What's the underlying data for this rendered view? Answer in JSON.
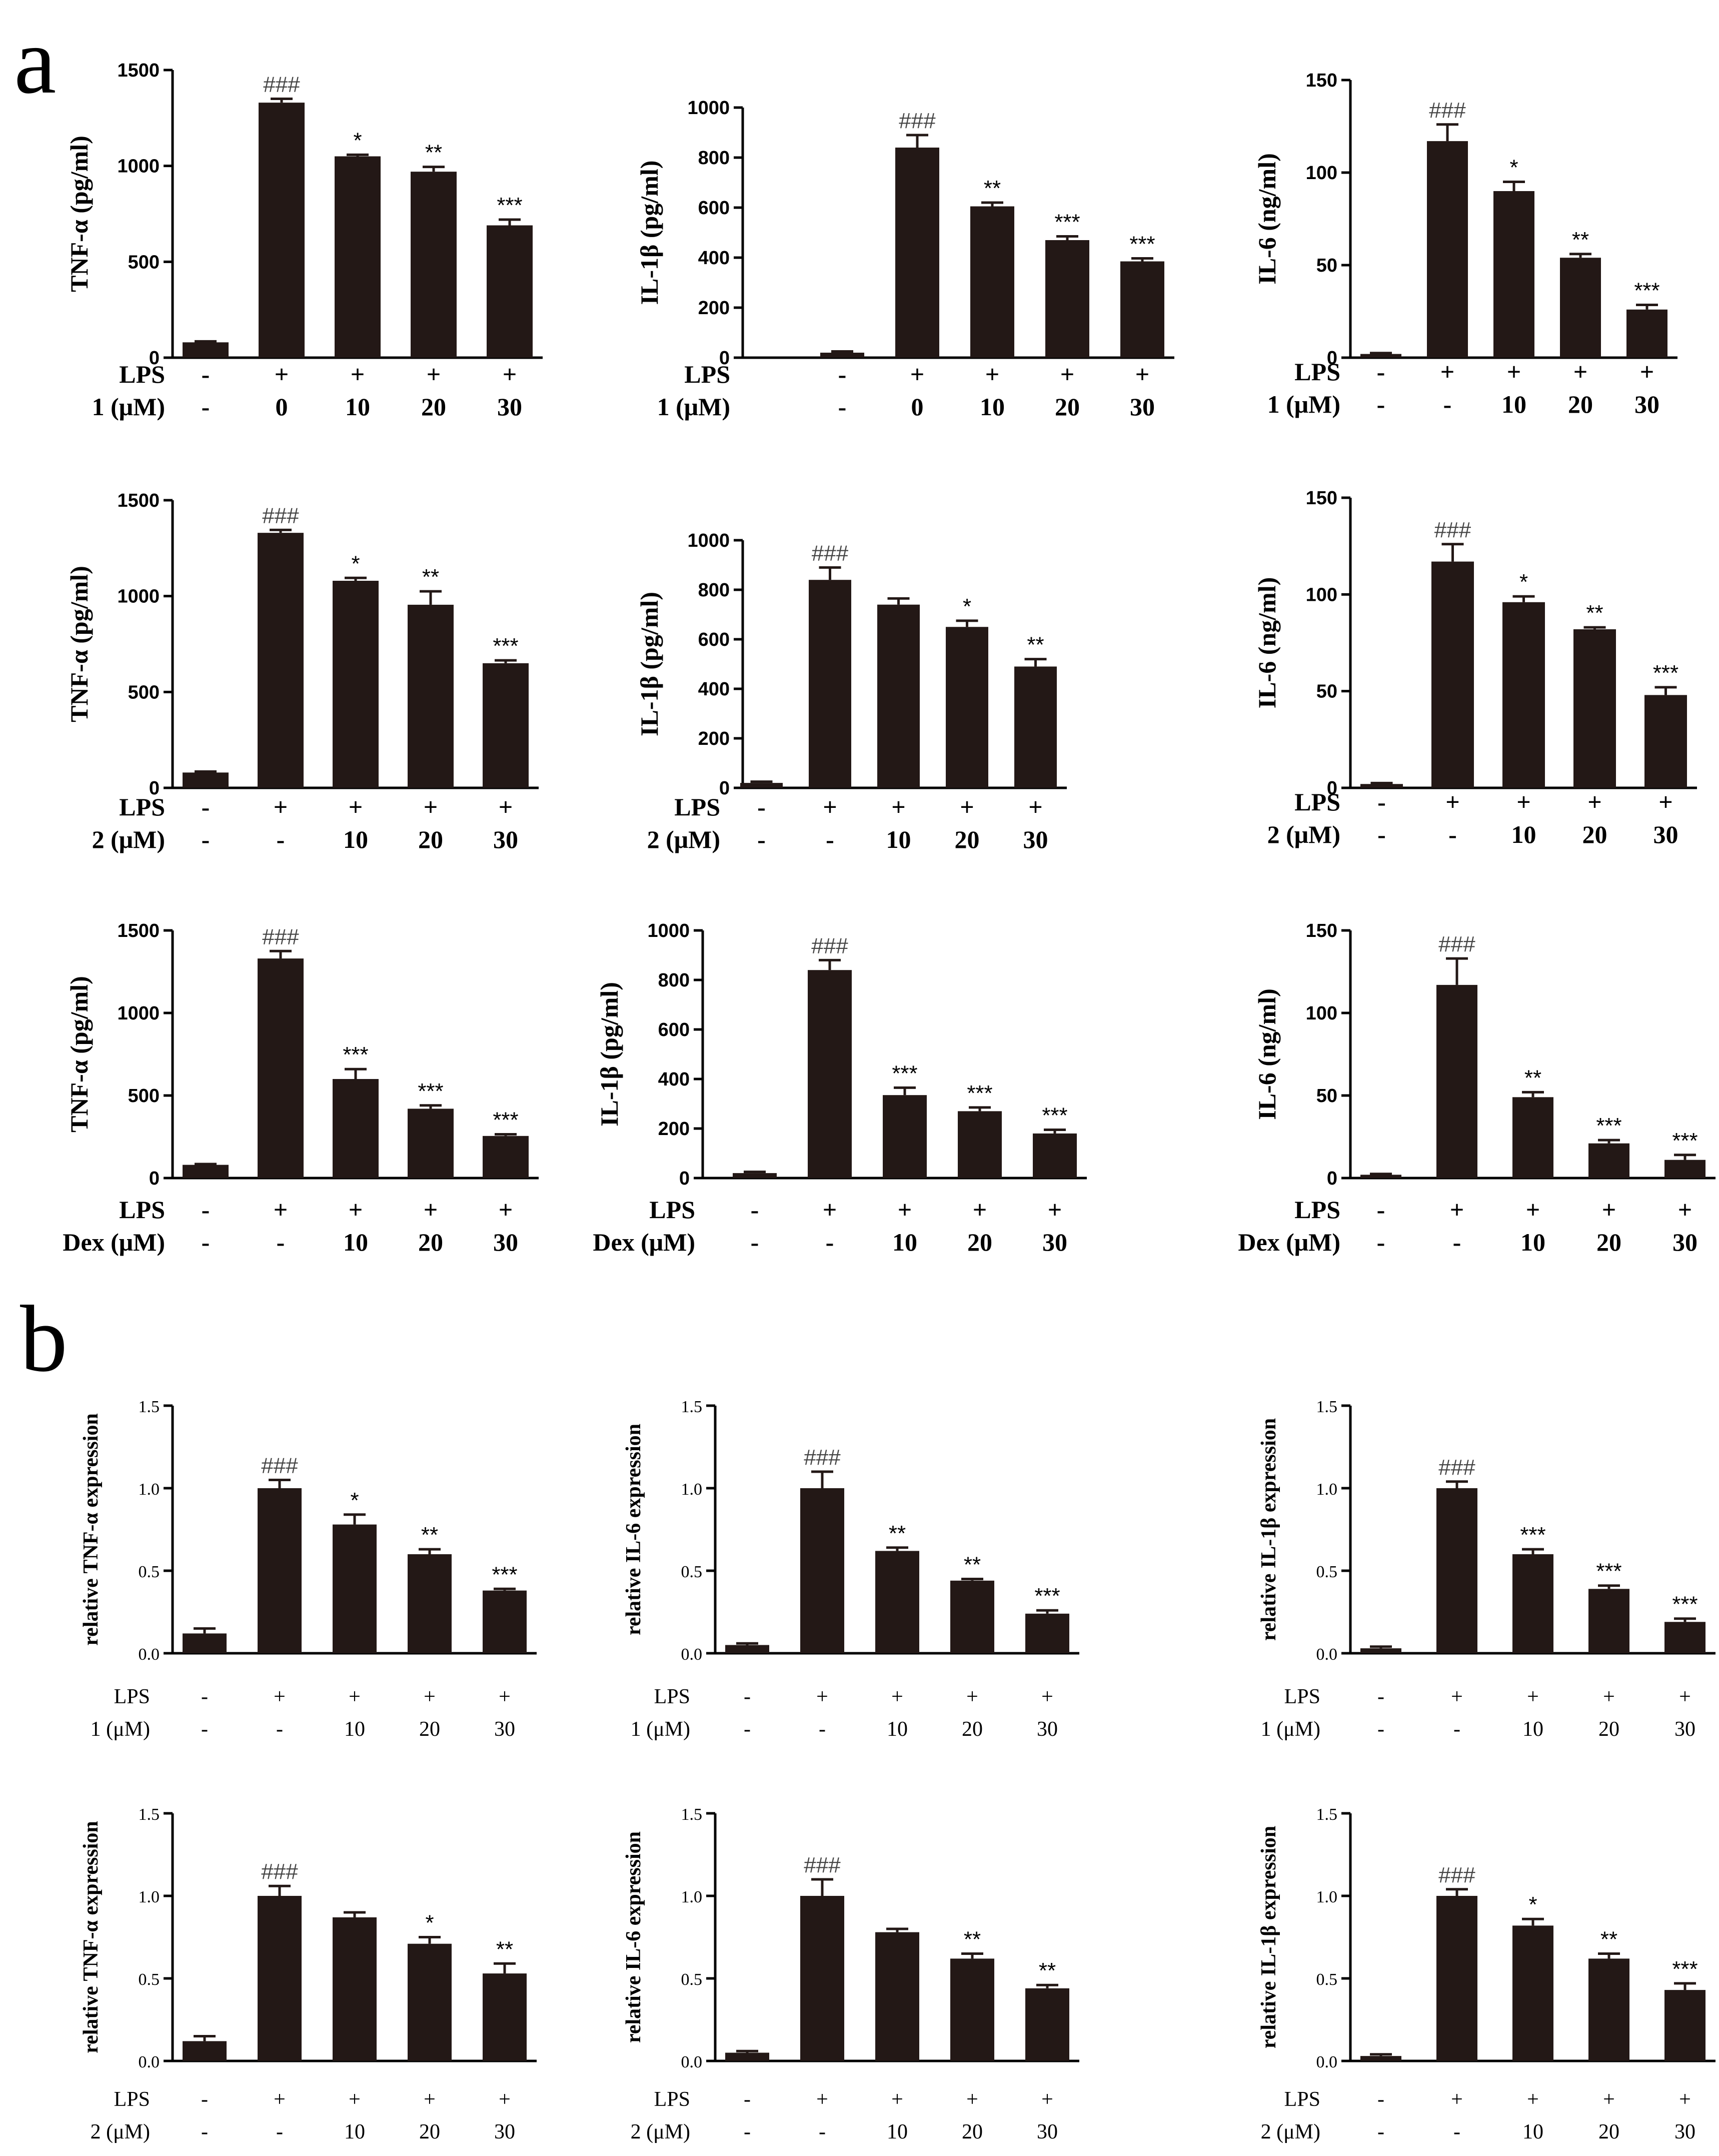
{
  "panel_labels": [
    "a",
    "b"
  ],
  "colors": {
    "bar": "#231816",
    "axis": "#000000"
  },
  "chart_data": [
    {
      "id": "a1",
      "panel": "a",
      "type": "bar",
      "ylabel": "TNF-α  (pg/ml)",
      "ylim": [
        0,
        1500
      ],
      "yticks": [
        "0",
        "500",
        "1000",
        "1500"
      ],
      "rows": [
        {
          "label": "LPS",
          "values": [
            "-",
            "+",
            "+",
            "+",
            "+"
          ]
        },
        {
          "label": "1 (μM)",
          "values": [
            "-",
            "0",
            "10",
            "20",
            "30"
          ]
        }
      ],
      "values": [
        80,
        1330,
        1050,
        970,
        690
      ],
      "errors": [
        5,
        20,
        8,
        25,
        30
      ],
      "annotations": [
        "",
        "###",
        "*",
        "**",
        "***"
      ]
    },
    {
      "id": "a2",
      "panel": "a",
      "type": "bar",
      "ylabel": "IL-1β  (pg/ml)",
      "ylim": [
        0,
        1000
      ],
      "yticks": [
        "0",
        "200",
        "400",
        "600",
        "800",
        "1000"
      ],
      "rows": [
        {
          "label": "LPS",
          "values": [
            "-",
            "+",
            "+",
            "+",
            "+"
          ]
        },
        {
          "label": "1 (μM)",
          "values": [
            "-",
            "0",
            "10",
            "20",
            "30"
          ]
        }
      ],
      "values": [
        20,
        840,
        605,
        470,
        385
      ],
      "errors": [
        5,
        50,
        15,
        15,
        12
      ],
      "annotations": [
        "",
        "###",
        "**",
        "***",
        "***"
      ]
    },
    {
      "id": "a3",
      "panel": "a",
      "type": "bar",
      "ylabel": "IL-6 (ng/ml)",
      "ylim": [
        0,
        150
      ],
      "yticks": [
        "0",
        "50",
        "100",
        "150"
      ],
      "rows": [
        {
          "label": "LPS",
          "values": [
            "-",
            "+",
            "+",
            "+",
            "+"
          ]
        },
        {
          "label": "1 (μM)",
          "values": [
            "-",
            "-",
            "10",
            "20",
            "30"
          ]
        }
      ],
      "values": [
        2,
        117,
        90,
        54,
        26
      ],
      "errors": [
        0.5,
        9,
        5,
        2,
        2.5
      ],
      "annotations": [
        "",
        "###",
        "*",
        "**",
        "***"
      ]
    },
    {
      "id": "a4",
      "panel": "a",
      "type": "bar",
      "ylabel": "TNF-α  (pg/ml)",
      "ylim": [
        0,
        1500
      ],
      "yticks": [
        "0",
        "500",
        "1000",
        "1500"
      ],
      "rows": [
        {
          "label": "LPS",
          "values": [
            "-",
            "+",
            "+",
            "+",
            "+"
          ]
        },
        {
          "label": "2 (μM)",
          "values": [
            "-",
            "-",
            "10",
            "20",
            "30"
          ]
        }
      ],
      "values": [
        80,
        1330,
        1080,
        955,
        650
      ],
      "errors": [
        5,
        15,
        15,
        70,
        15
      ],
      "annotations": [
        "",
        "###",
        "*",
        "**",
        "***"
      ]
    },
    {
      "id": "a5",
      "panel": "a",
      "type": "bar",
      "ylabel": "IL-1β  (pg/ml)",
      "ylim": [
        0,
        1000
      ],
      "yticks": [
        "0",
        "200",
        "400",
        "600",
        "800",
        "1000"
      ],
      "rows": [
        {
          "label": "LPS",
          "values": [
            "-",
            "+",
            "+",
            "+",
            "+"
          ]
        },
        {
          "label": "2 (μM)",
          "values": [
            "-",
            "-",
            "10",
            "20",
            "30"
          ]
        }
      ],
      "values": [
        20,
        840,
        740,
        650,
        490
      ],
      "errors": [
        5,
        50,
        25,
        25,
        30
      ],
      "annotations": [
        "",
        "###",
        "",
        "*",
        "**"
      ]
    },
    {
      "id": "a6",
      "panel": "a",
      "type": "bar",
      "ylabel": "IL-6 (ng/ml)",
      "ylim": [
        0,
        150
      ],
      "yticks": [
        "0",
        "50",
        "100",
        "150"
      ],
      "rows": [
        {
          "label": "LPS",
          "values": [
            "-",
            "+",
            "+",
            "+",
            "+"
          ]
        },
        {
          "label": "2 (μM)",
          "values": [
            "-",
            "-",
            "10",
            "20",
            "30"
          ]
        }
      ],
      "values": [
        2,
        117,
        96,
        82,
        48
      ],
      "errors": [
        0.5,
        9,
        3,
        1,
        4
      ],
      "annotations": [
        "",
        "###",
        "*",
        "**",
        "***"
      ]
    },
    {
      "id": "a7",
      "panel": "a",
      "type": "bar",
      "ylabel": "TNF-α  (pg/ml)",
      "ylim": [
        0,
        1500
      ],
      "yticks": [
        "0",
        "500",
        "1000",
        "1500"
      ],
      "rows": [
        {
          "label": "LPS",
          "values": [
            "-",
            "+",
            "+",
            "+",
            "+"
          ]
        },
        {
          "label": "Dex (μM)",
          "values": [
            "-",
            "-",
            "10",
            "20",
            "30"
          ]
        }
      ],
      "values": [
        80,
        1330,
        600,
        420,
        255
      ],
      "errors": [
        5,
        45,
        60,
        20,
        10
      ],
      "annotations": [
        "",
        "###",
        "***",
        "***",
        "***"
      ]
    },
    {
      "id": "a8",
      "panel": "a",
      "type": "bar",
      "ylabel": "IL-1β  (pg/ml)",
      "ylim": [
        0,
        1000
      ],
      "yticks": [
        "0",
        "200",
        "400",
        "600",
        "800",
        "1000"
      ],
      "rows": [
        {
          "label": "LPS",
          "values": [
            "-",
            "+",
            "+",
            "+",
            "+"
          ]
        },
        {
          "label": "Dex (μM)",
          "values": [
            "-",
            "-",
            "10",
            "20",
            "30"
          ]
        }
      ],
      "values": [
        20,
        840,
        335,
        270,
        180
      ],
      "errors": [
        5,
        40,
        30,
        15,
        15
      ],
      "annotations": [
        "",
        "###",
        "***",
        "***",
        "***"
      ]
    },
    {
      "id": "a9",
      "panel": "a",
      "type": "bar",
      "ylabel": "IL-6 (ng/ml)",
      "ylim": [
        0,
        150
      ],
      "yticks": [
        "0",
        "50",
        "100",
        "150"
      ],
      "rows": [
        {
          "label": "LPS",
          "values": [
            "-",
            "+",
            "+",
            "+",
            "+"
          ]
        },
        {
          "label": "Dex (μM)",
          "values": [
            "-",
            "-",
            "10",
            "20",
            "30"
          ]
        }
      ],
      "values": [
        2,
        117,
        49,
        21,
        11
      ],
      "errors": [
        0.5,
        16,
        3,
        2,
        3
      ],
      "annotations": [
        "",
        "###",
        "**",
        "***",
        "***"
      ]
    },
    {
      "id": "b1",
      "panel": "b",
      "type": "bar",
      "ylabel": "relative TNF-α  expression",
      "ylim": [
        0,
        1.5
      ],
      "yticks": [
        "0.0",
        "0.5",
        "1.0",
        "1.5"
      ],
      "rows": [
        {
          "label": "LPS",
          "values": [
            "-",
            "+",
            "+",
            "+",
            "+"
          ]
        },
        {
          "label": "1 (μM)",
          "values": [
            "-",
            "-",
            "10",
            "20",
            "30"
          ]
        }
      ],
      "values": [
        0.12,
        1.0,
        0.78,
        0.6,
        0.38
      ],
      "errors": [
        0.03,
        0.05,
        0.06,
        0.03,
        0.01
      ],
      "annotations": [
        "",
        "###",
        "*",
        "**",
        "***"
      ]
    },
    {
      "id": "b2",
      "panel": "b",
      "type": "bar",
      "ylabel": "relative IL-6 expression",
      "ylim": [
        0,
        1.5
      ],
      "yticks": [
        "0.0",
        "0.5",
        "1.0",
        "1.5"
      ],
      "rows": [
        {
          "label": "LPS",
          "values": [
            "-",
            "+",
            "+",
            "+",
            "+"
          ]
        },
        {
          "label": "1 (μM)",
          "values": [
            "-",
            "-",
            "10",
            "20",
            "30"
          ]
        }
      ],
      "values": [
        0.05,
        1.0,
        0.62,
        0.44,
        0.24
      ],
      "errors": [
        0.01,
        0.1,
        0.02,
        0.01,
        0.02
      ],
      "annotations": [
        "",
        "###",
        "**",
        "**",
        "***"
      ]
    },
    {
      "id": "b3",
      "panel": "b",
      "type": "bar",
      "ylabel": "relative IL-1β  expression",
      "ylim": [
        0,
        1.5
      ],
      "yticks": [
        "0.0",
        "0.5",
        "1.0",
        "1.5"
      ],
      "rows": [
        {
          "label": "LPS",
          "values": [
            "-",
            "+",
            "+",
            "+",
            "+"
          ]
        },
        {
          "label": "1 (μM)",
          "values": [
            "-",
            "-",
            "10",
            "20",
            "30"
          ]
        }
      ],
      "values": [
        0.03,
        1.0,
        0.6,
        0.39,
        0.19
      ],
      "errors": [
        0.01,
        0.04,
        0.03,
        0.02,
        0.02
      ],
      "annotations": [
        "",
        "###",
        "***",
        "***",
        "***"
      ]
    },
    {
      "id": "b4",
      "panel": "b",
      "type": "bar",
      "ylabel": "relative TNF-α  expression",
      "ylim": [
        0,
        1.5
      ],
      "yticks": [
        "0.0",
        "0.5",
        "1.0",
        "1.5"
      ],
      "rows": [
        {
          "label": "LPS",
          "values": [
            "-",
            "+",
            "+",
            "+",
            "+"
          ]
        },
        {
          "label": "2 (μM)",
          "values": [
            "-",
            "-",
            "10",
            "20",
            "30"
          ]
        }
      ],
      "values": [
        0.12,
        1.0,
        0.87,
        0.71,
        0.53
      ],
      "errors": [
        0.03,
        0.06,
        0.03,
        0.04,
        0.06
      ],
      "annotations": [
        "",
        "###",
        "",
        "*",
        "**"
      ]
    },
    {
      "id": "b5",
      "panel": "b",
      "type": "bar",
      "ylabel": "relative IL-6 expression",
      "ylim": [
        0,
        1.5
      ],
      "yticks": [
        "0.0",
        "0.5",
        "1.0",
        "1.5"
      ],
      "rows": [
        {
          "label": "LPS",
          "values": [
            "-",
            "+",
            "+",
            "+",
            "+"
          ]
        },
        {
          "label": "2 (μM)",
          "values": [
            "-",
            "-",
            "10",
            "20",
            "30"
          ]
        }
      ],
      "values": [
        0.05,
        1.0,
        0.78,
        0.62,
        0.44
      ],
      "errors": [
        0.01,
        0.1,
        0.02,
        0.03,
        0.02
      ],
      "annotations": [
        "",
        "###",
        "",
        "**",
        "**"
      ]
    },
    {
      "id": "b6",
      "panel": "b",
      "type": "bar",
      "ylabel": "relative IL-1β  expression",
      "ylim": [
        0,
        1.5
      ],
      "yticks": [
        "0.0",
        "0.5",
        "1.0",
        "1.5"
      ],
      "rows": [
        {
          "label": "LPS",
          "values": [
            "-",
            "+",
            "+",
            "+",
            "+"
          ]
        },
        {
          "label": "2 (μM)",
          "values": [
            "-",
            "-",
            "10",
            "20",
            "30"
          ]
        }
      ],
      "values": [
        0.03,
        1.0,
        0.82,
        0.62,
        0.43
      ],
      "errors": [
        0.01,
        0.04,
        0.04,
        0.03,
        0.04
      ],
      "annotations": [
        "",
        "###",
        "*",
        "**",
        "***"
      ]
    }
  ]
}
